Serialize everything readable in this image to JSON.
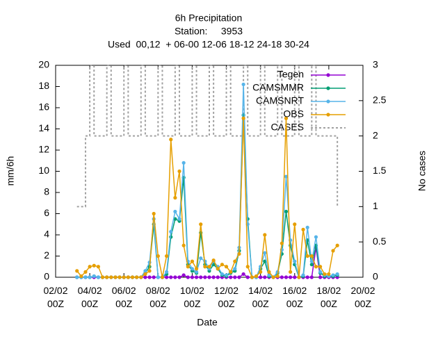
{
  "chart_data": {
    "type": "line",
    "title": [
      "6h Precipitation",
      "Station:     3953",
      "Used  00,12  + 06-00 12-06 18-12 24-18 30-24"
    ],
    "xlabel": "Date",
    "ylabel": "mm/6h",
    "y2label": "No cases",
    "xlim": [
      0,
      18
    ],
    "xticks": [
      {
        "value": 0,
        "label": "02/02\n00Z"
      },
      {
        "value": 2,
        "label": "04/02\n00Z"
      },
      {
        "value": 4,
        "label": "06/02\n00Z"
      },
      {
        "value": 6,
        "label": "08/02\n00Z"
      },
      {
        "value": 8,
        "label": "10/02\n00Z"
      },
      {
        "value": 10,
        "label": "12/02\n00Z"
      },
      {
        "value": 12,
        "label": "14/02\n00Z"
      },
      {
        "value": 14,
        "label": "16/02\n00Z"
      },
      {
        "value": 16,
        "label": "18/02\n00Z"
      },
      {
        "value": 18,
        "label": "20/02\n00Z"
      }
    ],
    "ylim": [
      0,
      20
    ],
    "yticks": [
      0,
      2,
      4,
      6,
      8,
      10,
      12,
      14,
      16,
      18,
      20
    ],
    "y2lim": [
      0,
      3
    ],
    "y2ticks": [
      0,
      0.5,
      1,
      1.5,
      2,
      2.5,
      3
    ],
    "legend": "top right",
    "x": [
      1.25,
      1.5,
      1.75,
      2,
      2.25,
      2.5,
      2.75,
      3,
      3.25,
      3.5,
      3.75,
      4,
      4.25,
      4.5,
      4.75,
      5,
      5.25,
      5.5,
      5.75,
      6,
      6.25,
      6.5,
      6.75,
      7,
      7.25,
      7.5,
      7.75,
      8,
      8.25,
      8.5,
      8.75,
      9,
      9.25,
      9.5,
      9.75,
      10,
      10.25,
      10.5,
      10.75,
      11,
      11.25,
      11.5,
      11.75,
      12,
      12.25,
      12.5,
      12.75,
      13,
      13.25,
      13.5,
      13.75,
      14,
      14.25,
      14.5,
      14.75,
      15,
      15.25,
      15.5,
      15.75,
      16,
      16.25,
      16.5
    ],
    "series": [
      {
        "name": "Tegen",
        "color": "#9400d3",
        "values": [
          0,
          0,
          0,
          0,
          0,
          0,
          0,
          0,
          0,
          0,
          0,
          0,
          0,
          0,
          0,
          0,
          0,
          0,
          0,
          0,
          0,
          0,
          0,
          0,
          0,
          0.2,
          0,
          0,
          0,
          0,
          0,
          0,
          0,
          0,
          0,
          0,
          0,
          0,
          0,
          0.3,
          0,
          0,
          0,
          0,
          0,
          0,
          0,
          0,
          0,
          0,
          0,
          0,
          0,
          0,
          0,
          0,
          2.8,
          0,
          0,
          0,
          0,
          0
        ]
      },
      {
        "name": "CAMSMMR",
        "color": "#009e73",
        "values": [
          0,
          0,
          0,
          0,
          0.1,
          0,
          0,
          0,
          0,
          0,
          0,
          0,
          0,
          0,
          0,
          0,
          0.4,
          1.0,
          5.0,
          0,
          0,
          0.3,
          3.8,
          5.5,
          5.3,
          9.4,
          1.2,
          0.6,
          0.4,
          4.2,
          1.2,
          0.6,
          1.2,
          0.8,
          0.2,
          0.1,
          0.4,
          0.6,
          2.5,
          15.3,
          5.5,
          0,
          0,
          0.8,
          1.5,
          0.1,
          0,
          0.4,
          2.2,
          6.2,
          3.0,
          1.2,
          0,
          0.1,
          3.5,
          1.2,
          3.0,
          0.4,
          0.1,
          0.1,
          0.1,
          0.2
        ]
      },
      {
        "name": "CAMSNRT",
        "color": "#56b4e9",
        "values": [
          0,
          0,
          0,
          0,
          0.1,
          0,
          0,
          0,
          0,
          0,
          0,
          0,
          0,
          0,
          0,
          0,
          0.6,
          1.4,
          5.5,
          0,
          0,
          0.5,
          4.3,
          6.2,
          5.5,
          10.8,
          1.5,
          0.8,
          0.5,
          1.8,
          1.5,
          0.8,
          1.5,
          1.0,
          0.3,
          0.2,
          0.5,
          0.8,
          2.8,
          18.2,
          5.0,
          0,
          0,
          1.0,
          2.3,
          0.2,
          0,
          0.5,
          2.6,
          9.5,
          3.5,
          1.5,
          0,
          0.2,
          4.7,
          1.5,
          3.8,
          0.5,
          0.2,
          0.1,
          0.2,
          0.3
        ]
      },
      {
        "name": "OBS",
        "color": "#e69f00",
        "values": [
          0.6,
          0.1,
          0.5,
          1.0,
          1.1,
          1.0,
          0,
          0,
          0,
          0,
          0,
          0,
          0,
          0,
          0,
          0,
          0.3,
          0.6,
          6.0,
          2.0,
          0,
          2.0,
          13.0,
          7.5,
          10.0,
          3.0,
          1.0,
          1.5,
          0.8,
          5.0,
          1.0,
          1.0,
          1.6,
          0.8,
          1.2,
          1.0,
          0.5,
          1.5,
          2.2,
          15.0,
          1.0,
          0,
          0.1,
          0.5,
          4.0,
          0.5,
          0,
          0.1,
          3.2,
          15.0,
          0.5,
          5.0,
          0,
          4.5,
          2.0,
          2.0,
          1.0,
          1.0,
          0.3,
          0.3,
          2.5,
          3.0
        ]
      },
      {
        "name": "CASES",
        "color": "#a0a0a0",
        "axis": "y2",
        "step": true,
        "dashed": true,
        "values": [
          1,
          1,
          2,
          3,
          2,
          2,
          2,
          3,
          2,
          2,
          2,
          3,
          2,
          2,
          2,
          3,
          2,
          2,
          2,
          3,
          2,
          2,
          2,
          3,
          2,
          2,
          2,
          3,
          2,
          2,
          2,
          3,
          2,
          2,
          2,
          3,
          2,
          2,
          2,
          3,
          2,
          2,
          2,
          3,
          2,
          2,
          2,
          3,
          2,
          2,
          2,
          3,
          2,
          2,
          2,
          3,
          2,
          2,
          2,
          2,
          2,
          1
        ]
      }
    ]
  }
}
